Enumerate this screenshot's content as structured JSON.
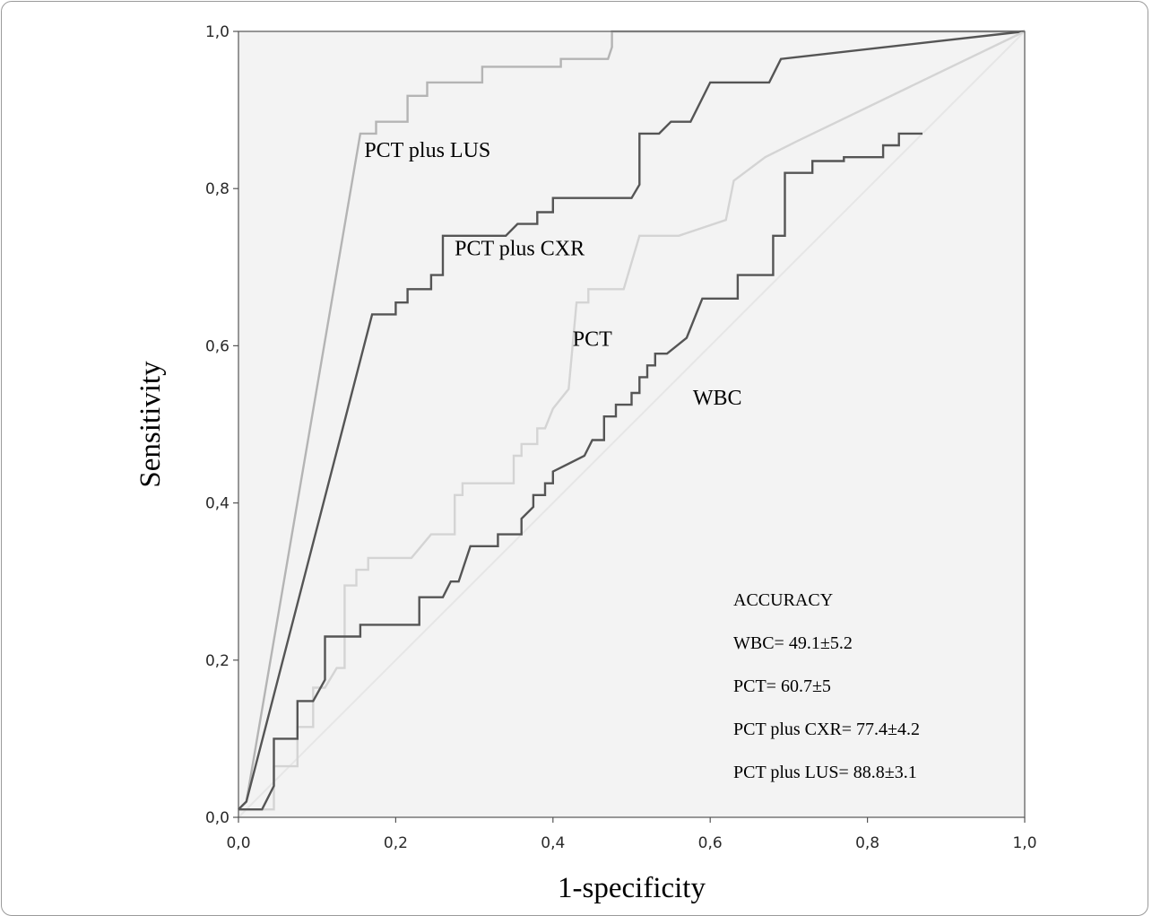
{
  "chart_data": {
    "type": "line",
    "xlabel": "1-specificity",
    "ylabel": "Sensitivity",
    "xlim": [
      0,
      1
    ],
    "ylim": [
      0,
      1
    ],
    "xticks": [
      "0,0",
      "0,2",
      "0,4",
      "0,6",
      "0,8",
      "1,0"
    ],
    "yticks": [
      "0,0",
      "0,2",
      "0,4",
      "0,6",
      "0,8",
      "1,0"
    ],
    "grid": false,
    "background": "#f3f3f3",
    "reference_line": {
      "from": [
        0,
        0
      ],
      "to": [
        1,
        1
      ],
      "color": "#e6e6e6"
    },
    "series": [
      {
        "name": "PCT plus LUS",
        "color": "#b4b4b4",
        "label_at": [
          0.16,
          0.84
        ],
        "points": [
          [
            0,
            0.01
          ],
          [
            0.01,
            0.02
          ],
          [
            0.155,
            0.87
          ],
          [
            0.175,
            0.87
          ],
          [
            0.175,
            0.885
          ],
          [
            0.215,
            0.885
          ],
          [
            0.215,
            0.918
          ],
          [
            0.24,
            0.918
          ],
          [
            0.24,
            0.935
          ],
          [
            0.31,
            0.935
          ],
          [
            0.31,
            0.955
          ],
          [
            0.41,
            0.955
          ],
          [
            0.41,
            0.965
          ],
          [
            0.47,
            0.965
          ],
          [
            0.475,
            0.98
          ],
          [
            0.475,
            1.0
          ],
          [
            1.0,
            1.0
          ]
        ]
      },
      {
        "name": "PCT plus CXR",
        "color": "#555555",
        "label_at": [
          0.275,
          0.715
        ],
        "points": [
          [
            0,
            0.01
          ],
          [
            0.01,
            0.02
          ],
          [
            0.17,
            0.64
          ],
          [
            0.2,
            0.64
          ],
          [
            0.2,
            0.655
          ],
          [
            0.215,
            0.655
          ],
          [
            0.215,
            0.672
          ],
          [
            0.245,
            0.672
          ],
          [
            0.245,
            0.69
          ],
          [
            0.26,
            0.69
          ],
          [
            0.26,
            0.74
          ],
          [
            0.34,
            0.74
          ],
          [
            0.355,
            0.755
          ],
          [
            0.38,
            0.755
          ],
          [
            0.38,
            0.77
          ],
          [
            0.4,
            0.77
          ],
          [
            0.4,
            0.788
          ],
          [
            0.5,
            0.788
          ],
          [
            0.51,
            0.805
          ],
          [
            0.51,
            0.87
          ],
          [
            0.535,
            0.87
          ],
          [
            0.55,
            0.885
          ],
          [
            0.575,
            0.885
          ],
          [
            0.6,
            0.935
          ],
          [
            0.675,
            0.935
          ],
          [
            0.69,
            0.965
          ],
          [
            1.0,
            1.0
          ]
        ]
      },
      {
        "name": "PCT",
        "color": "#d4d4d4",
        "label_at": [
          0.425,
          0.6
        ],
        "points": [
          [
            0,
            0.01
          ],
          [
            0.045,
            0.01
          ],
          [
            0.045,
            0.065
          ],
          [
            0.075,
            0.065
          ],
          [
            0.075,
            0.115
          ],
          [
            0.095,
            0.115
          ],
          [
            0.095,
            0.165
          ],
          [
            0.11,
            0.165
          ],
          [
            0.125,
            0.19
          ],
          [
            0.135,
            0.19
          ],
          [
            0.135,
            0.295
          ],
          [
            0.15,
            0.295
          ],
          [
            0.15,
            0.315
          ],
          [
            0.165,
            0.315
          ],
          [
            0.165,
            0.33
          ],
          [
            0.22,
            0.33
          ],
          [
            0.245,
            0.36
          ],
          [
            0.275,
            0.36
          ],
          [
            0.275,
            0.41
          ],
          [
            0.285,
            0.41
          ],
          [
            0.285,
            0.425
          ],
          [
            0.35,
            0.425
          ],
          [
            0.35,
            0.46
          ],
          [
            0.36,
            0.46
          ],
          [
            0.36,
            0.475
          ],
          [
            0.38,
            0.475
          ],
          [
            0.38,
            0.495
          ],
          [
            0.39,
            0.495
          ],
          [
            0.4,
            0.52
          ],
          [
            0.42,
            0.545
          ],
          [
            0.43,
            0.655
          ],
          [
            0.445,
            0.655
          ],
          [
            0.445,
            0.672
          ],
          [
            0.49,
            0.672
          ],
          [
            0.51,
            0.74
          ],
          [
            0.56,
            0.74
          ],
          [
            0.62,
            0.76
          ],
          [
            0.63,
            0.81
          ],
          [
            0.67,
            0.84
          ],
          [
            0.71,
            0.86
          ],
          [
            1.0,
            1.0
          ]
        ]
      },
      {
        "name": "WBC",
        "color": "#555555",
        "label_at": [
          0.578,
          0.525
        ],
        "points": [
          [
            0,
            0.01
          ],
          [
            0.03,
            0.01
          ],
          [
            0.045,
            0.04
          ],
          [
            0.045,
            0.1
          ],
          [
            0.075,
            0.1
          ],
          [
            0.075,
            0.148
          ],
          [
            0.095,
            0.148
          ],
          [
            0.11,
            0.175
          ],
          [
            0.11,
            0.23
          ],
          [
            0.155,
            0.23
          ],
          [
            0.155,
            0.245
          ],
          [
            0.23,
            0.245
          ],
          [
            0.23,
            0.28
          ],
          [
            0.26,
            0.28
          ],
          [
            0.27,
            0.3
          ],
          [
            0.28,
            0.3
          ],
          [
            0.295,
            0.345
          ],
          [
            0.33,
            0.345
          ],
          [
            0.33,
            0.36
          ],
          [
            0.36,
            0.36
          ],
          [
            0.36,
            0.38
          ],
          [
            0.375,
            0.395
          ],
          [
            0.375,
            0.41
          ],
          [
            0.39,
            0.41
          ],
          [
            0.39,
            0.425
          ],
          [
            0.4,
            0.425
          ],
          [
            0.4,
            0.44
          ],
          [
            0.44,
            0.46
          ],
          [
            0.45,
            0.48
          ],
          [
            0.465,
            0.48
          ],
          [
            0.465,
            0.51
          ],
          [
            0.48,
            0.51
          ],
          [
            0.48,
            0.525
          ],
          [
            0.5,
            0.525
          ],
          [
            0.5,
            0.54
          ],
          [
            0.51,
            0.54
          ],
          [
            0.51,
            0.56
          ],
          [
            0.52,
            0.56
          ],
          [
            0.52,
            0.575
          ],
          [
            0.53,
            0.575
          ],
          [
            0.53,
            0.59
          ],
          [
            0.545,
            0.59
          ],
          [
            0.57,
            0.61
          ],
          [
            0.59,
            0.66
          ],
          [
            0.635,
            0.66
          ],
          [
            0.635,
            0.69
          ],
          [
            0.68,
            0.69
          ],
          [
            0.68,
            0.74
          ],
          [
            0.695,
            0.74
          ],
          [
            0.695,
            0.82
          ],
          [
            0.73,
            0.82
          ],
          [
            0.73,
            0.835
          ],
          [
            0.77,
            0.835
          ],
          [
            0.77,
            0.84
          ],
          [
            0.82,
            0.84
          ],
          [
            0.82,
            0.855
          ],
          [
            0.84,
            0.855
          ],
          [
            0.84,
            0.87
          ],
          [
            0.87,
            0.87
          ]
        ]
      }
    ],
    "annotation": {
      "lines": [
        "ACCURACY",
        "WBC= 49.1±5.2",
        "PCT= 60.7±5",
        "PCT plus CXR= 77.4±4.2",
        "PCT plus LUS= 88.8±3.1"
      ]
    }
  }
}
